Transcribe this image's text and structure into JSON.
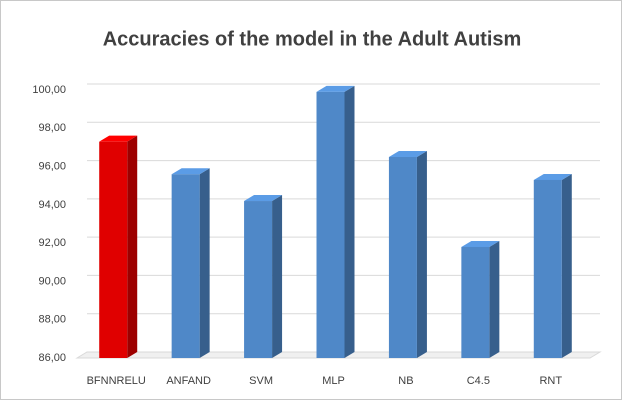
{
  "chart_data": {
    "type": "bar3d",
    "title": "Accuracies of the model in the Adult Autism",
    "categories": [
      "BFNNRELU",
      "ANFAND",
      "SVM",
      "MLP",
      "NB",
      "C4.5",
      "RNT"
    ],
    "values": [
      97.3,
      95.6,
      94.2,
      99.9,
      96.5,
      91.8,
      95.3
    ],
    "colors": [
      "#e00000",
      "#4f88c8",
      "#4f88c8",
      "#4f88c8",
      "#4f88c8",
      "#4f88c8",
      "#4f88c8"
    ],
    "ylim": [
      86,
      100
    ],
    "yticks": [
      {
        "value": 86,
        "label": "86,00"
      },
      {
        "value": 88,
        "label": "88,00"
      },
      {
        "value": 90,
        "label": "90,00"
      },
      {
        "value": 92,
        "label": "92,00"
      },
      {
        "value": 94,
        "label": "94,00"
      },
      {
        "value": 96,
        "label": "96,00"
      },
      {
        "value": 98,
        "label": "98,00"
      },
      {
        "value": 100,
        "label": "100,00"
      }
    ],
    "grid": true
  }
}
